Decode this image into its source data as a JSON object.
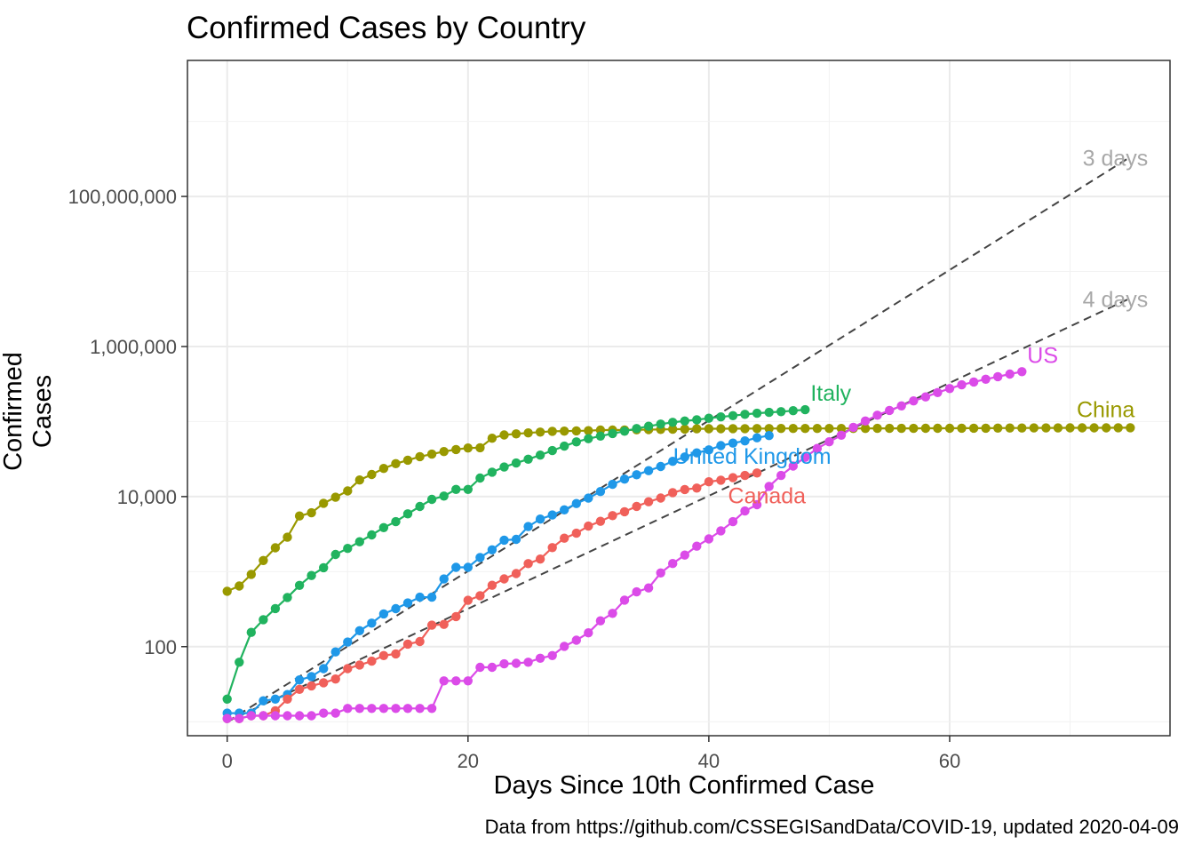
{
  "chart_data": {
    "type": "line",
    "title": "Confirmed Cases by Country",
    "xlabel": "Days Since 10th Confirmed Case",
    "ylabel": "Confirmed Cases",
    "caption": "Data from https://github.com/CSSEGISandData/COVID-19, updated 2020-04-09",
    "x_ticks": [
      "0",
      "20",
      "40",
      "60"
    ],
    "y_ticks": [
      "100",
      "10,000",
      "1,000,000",
      "100,000,000"
    ],
    "y_scale": "log10",
    "xlim": [
      -3.3,
      78.3
    ],
    "ylim": [
      6.5,
      6500000000
    ],
    "grid": true,
    "legend": "none (direct labels)",
    "series": [
      {
        "name": "China",
        "color": "#999900",
        "values": [
          548,
          643,
          920,
          1406,
          2075,
          2877,
          5509,
          6087,
          8141,
          9802,
          11891,
          16630,
          19716,
          23707,
          27440,
          30587,
          34110,
          36814,
          39829,
          42354,
          44386,
          44759,
          59895,
          66358,
          68413,
          70513,
          72434,
          74211,
          74619,
          75077,
          75550,
          77001,
          77022,
          77241,
          77754,
          78166,
          78600,
          78928,
          79356,
          79932,
          80136,
          80261,
          80386,
          80537,
          80690,
          80770,
          80823,
          80860,
          80887,
          80921,
          80932,
          80945,
          80977,
          81003,
          81033,
          81058,
          81102,
          81156,
          81250,
          81305,
          81435,
          81498,
          81591,
          81661,
          81782,
          81897,
          81999,
          82122,
          82198,
          82279,
          82361,
          82432,
          82511,
          82543,
          82602,
          82665
        ]
      },
      {
        "name": "Italy",
        "color": "#21B35F",
        "values": [
          20,
          62,
          155,
          229,
          322,
          453,
          655,
          888,
          1128,
          1694,
          2036,
          2502,
          3089,
          3858,
          4636,
          5883,
          7375,
          9172,
          10149,
          12462,
          12462,
          17660,
          21157,
          24747,
          27980,
          31506,
          35713,
          41035,
          47021,
          53578,
          59138,
          63927,
          69176,
          74386,
          80589,
          86498,
          92472,
          97689,
          101739,
          105792,
          110574,
          115242,
          119827,
          124632,
          128948,
          132547,
          135586,
          139422,
          143626
        ]
      },
      {
        "name": "United Kingdom",
        "color": "#1F98E8",
        "values": [
          13,
          13,
          13,
          19,
          20,
          23,
          36,
          40,
          51,
          85,
          115,
          163,
          206,
          273,
          321,
          382,
          456,
          456,
          798,
          1140,
          1140,
          1543,
          1950,
          2626,
          2689,
          3983,
          5018,
          5683,
          6650,
          8077,
          9529,
          11658,
          14543,
          17089,
          19522,
          22141,
          25150,
          29474,
          33718,
          38168,
          41903,
          47806,
          51608,
          55242,
          60733,
          65077
        ]
      },
      {
        "name": "Canada",
        "color": "#F0605A",
        "values": [
          11,
          11,
          12,
          12,
          14,
          20,
          27,
          30,
          33,
          37,
          51,
          57,
          64,
          76,
          80,
          108,
          117,
          193,
          198,
          252,
          415,
          478,
          657,
          800,
          943,
          1277,
          1469,
          2088,
          2790,
          3251,
          4042,
          4682,
          5576,
          6280,
          7398,
          8527,
          9560,
          11284,
          12437,
          12978,
          15756,
          16563,
          17872,
          19141,
          20654
        ]
      },
      {
        "name": "US",
        "color": "#DB4BE8",
        "values": [
          11,
          11,
          12,
          12,
          12,
          12,
          12,
          12,
          13,
          13,
          15,
          15,
          15,
          15,
          15,
          15,
          15,
          15,
          35,
          35,
          35,
          53,
          53,
          59,
          60,
          62,
          70,
          76,
          101,
          122,
          153,
          221,
          278,
          417,
          537,
          605,
          959,
          1281,
          1663,
          2179,
          2727,
          3499,
          4632,
          6421,
          7786,
          13680,
          19101,
          25493,
          33276,
          43847,
          53740,
          65778,
          83836,
          101657,
          121478,
          140886,
          161807,
          188172,
          213242,
          243622,
          275367,
          308650,
          336802,
          366317,
          396223,
          429052,
          461437
        ]
      }
    ],
    "reference_lines": [
      {
        "name": "3 days",
        "start": 10,
        "doubling_days": 3,
        "x_end": 75,
        "color": "#444444"
      },
      {
        "name": "4 days",
        "start": 10,
        "doubling_days": 4,
        "x_end": 75,
        "color": "#444444"
      }
    ],
    "label_color_ref": "#A8A8A8"
  }
}
